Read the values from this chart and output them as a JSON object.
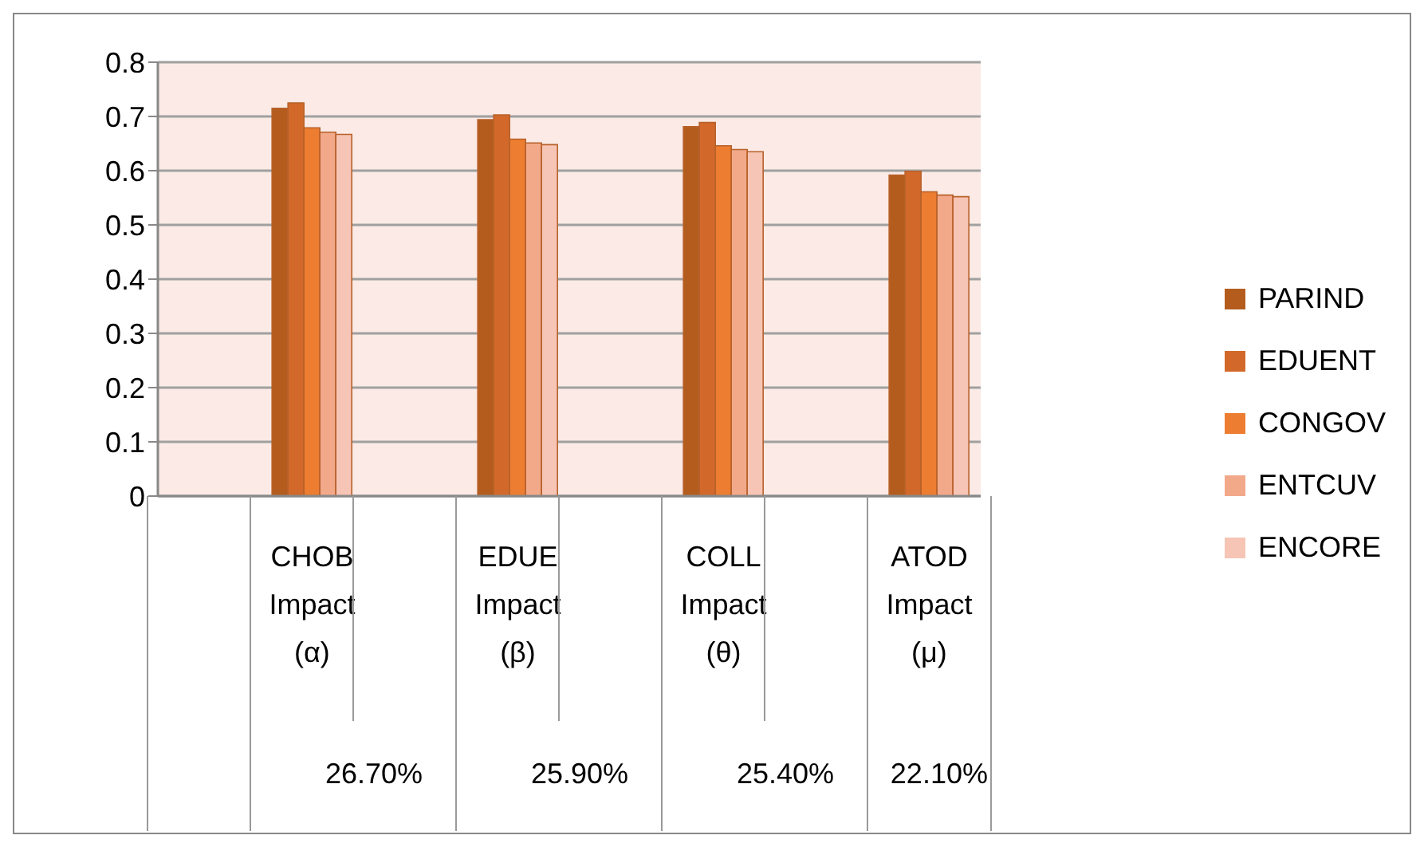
{
  "chart_data": {
    "type": "bar",
    "categories": [
      null,
      "CHOB Impact (α)",
      null,
      "EDUE Impact (β)",
      null,
      "COLL Impact (θ)",
      null,
      "ATOD Impact (μ)"
    ],
    "series": [
      {
        "name": "PARIND",
        "color": "#b35c1e",
        "values": [
          null,
          0.715,
          null,
          0.694,
          null,
          0.681,
          null,
          0.592
        ]
      },
      {
        "name": "EDUENT",
        "color": "#d2692a",
        "values": [
          null,
          0.725,
          null,
          0.703,
          null,
          0.689,
          null,
          0.599
        ]
      },
      {
        "name": "CONGOV",
        "color": "#ed7d31",
        "values": [
          null,
          0.679,
          null,
          0.658,
          null,
          0.646,
          null,
          0.561
        ]
      },
      {
        "name": "ENTCUV",
        "color": "#f2a98a",
        "values": [
          null,
          0.671,
          null,
          0.651,
          null,
          0.639,
          null,
          0.555
        ]
      },
      {
        "name": "ENCORE",
        "color": "#f6c5b5",
        "values": [
          null,
          0.667,
          null,
          0.648,
          null,
          0.635,
          null,
          0.552
        ]
      }
    ],
    "ylim": [
      0,
      0.8
    ],
    "yticks": [
      0,
      0.1,
      0.2,
      0.3,
      0.4,
      0.5,
      0.6,
      0.7,
      0.8
    ],
    "grid": "y",
    "legend": "right",
    "annotations": [
      "26.70%",
      "25.90%",
      "25.40%",
      "22.10%"
    ]
  }
}
